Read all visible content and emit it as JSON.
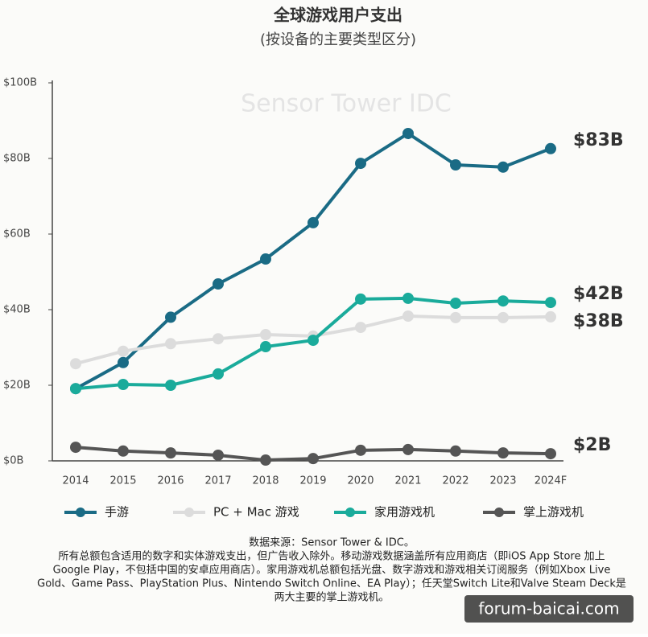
{
  "chart_data": {
    "type": "line",
    "title": "全球游戏用户支出",
    "subtitle": "(按设备的主要类型区分)",
    "watermark": "Sensor Tower  IDC",
    "categories": [
      "2014",
      "2015",
      "2016",
      "2017",
      "2018",
      "2019",
      "2020",
      "2021",
      "2022",
      "2023",
      "2024F"
    ],
    "ylim": [
      0,
      100
    ],
    "yticks": [
      {
        "value": 0,
        "label": "$0B"
      },
      {
        "value": 20,
        "label": "$20B"
      },
      {
        "value": 40,
        "label": "$40B"
      },
      {
        "value": 60,
        "label": "$60B"
      },
      {
        "value": 80,
        "label": "$80B"
      },
      {
        "value": 100,
        "label": "$100B"
      }
    ],
    "series": [
      {
        "name": "手游",
        "color": "#1a6b85",
        "end_label": "$83B",
        "values": [
          19.1,
          26,
          38,
          46.8,
          53.4,
          63,
          78.7,
          86.6,
          78.3,
          77.7,
          82.6
        ]
      },
      {
        "name": "PC + Mac 游戏",
        "color": "#dcdcdc",
        "end_label": "$38B",
        "values": [
          25.7,
          29,
          31,
          32.3,
          33.4,
          33,
          35.3,
          38.3,
          37.9,
          37.9,
          38.1
        ]
      },
      {
        "name": "家用游戏机",
        "color": "#1aab9b",
        "end_label": "$42B",
        "values": [
          19.1,
          20.2,
          20,
          23,
          30.2,
          31.9,
          42.8,
          43,
          41.7,
          42.3,
          41.9
        ]
      },
      {
        "name": "掌上游戏机",
        "color": "#555555",
        "end_label": "$2B",
        "values": [
          3.6,
          2.6,
          2.1,
          1.5,
          0.2,
          0.6,
          2.8,
          3,
          2.6,
          2.1,
          1.9
        ]
      }
    ],
    "notes": [
      "数据来源：Sensor Tower & IDC。",
      "所有总额包含适用的数字和实体游戏支出，但广告收入除外。移动游戏数据涵盖所有应用商店（即iOS App Store 加上",
      "Google Play，不包括中国的安卓应用商店）。家用游戏机总额包括光盘、数字游戏和游戏相关订阅服务（例如Xbox Live",
      "Gold、Game Pass、PlayStation Plus、Nintendo Switch Online、EA Play）；任天堂Switch Lite和Valve Steam Deck是",
      "两大主要的掌上游戏机。"
    ],
    "site_watermark": "forum-baicai.com"
  }
}
